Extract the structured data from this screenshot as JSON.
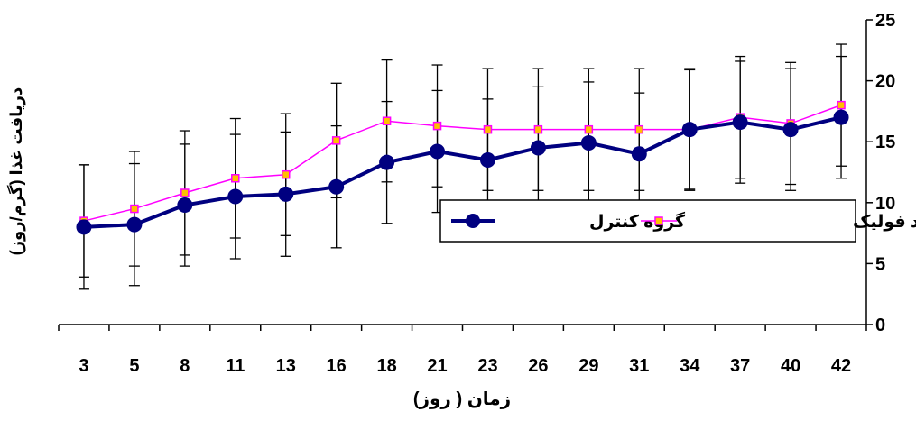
{
  "chart_data": {
    "type": "line",
    "xlabel": "زمان ( روز)",
    "ylabel": "دریافت غذا (گرم/روز)",
    "categories": [
      "3",
      "5",
      "8",
      "11",
      "13",
      "16",
      "18",
      "21",
      "23",
      "26",
      "29",
      "31",
      "34",
      "37",
      "40",
      "42"
    ],
    "ylim": [
      0,
      25
    ],
    "yticks": [
      "0",
      "5",
      "10",
      "15",
      "20",
      "25"
    ],
    "grid": false,
    "legend_position": "center-right",
    "series": [
      {
        "name": "گروه کنترل",
        "color": "#000080",
        "marker": "circle",
        "values": [
          8.0,
          8.2,
          9.8,
          10.5,
          10.7,
          11.3,
          13.3,
          14.2,
          13.5,
          14.5,
          14.9,
          14.0,
          16.0,
          16.6,
          16.0,
          17.0
        ],
        "errors": [
          5.1,
          5.0,
          5.0,
          5.1,
          5.1,
          5.0,
          5.0,
          5.0,
          5.0,
          5.0,
          5.0,
          5.0,
          4.9,
          5.0,
          5.0,
          5.0
        ]
      },
      {
        "name": "گروه گیرنده  اسید فولیک",
        "color": "#FF00FF",
        "marker": "square",
        "values": [
          8.5,
          9.5,
          10.8,
          12.0,
          12.3,
          15.1,
          16.7,
          16.3,
          16.0,
          16.0,
          16.0,
          16.0,
          16.0,
          17.0,
          16.5,
          18.0
        ],
        "errors": [
          4.6,
          4.7,
          5.1,
          4.9,
          5.0,
          4.7,
          5.0,
          5.0,
          5.0,
          5.0,
          5.0,
          5.0,
          5.0,
          5.0,
          5.0,
          5.0
        ]
      }
    ]
  }
}
